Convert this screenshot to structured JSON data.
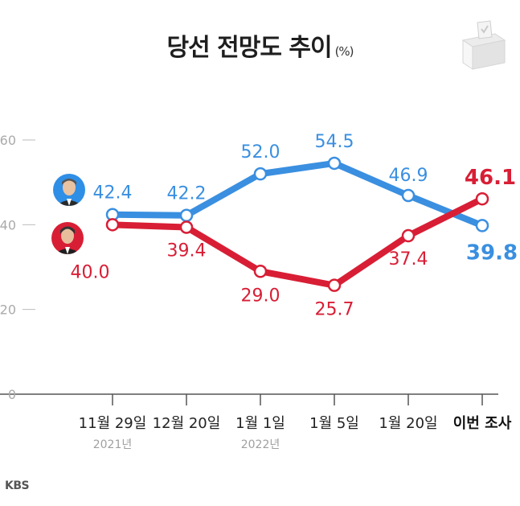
{
  "header": {
    "title": "당선 전망도 추이",
    "unit": "(%)"
  },
  "footer": {
    "logo_text": "KBS"
  },
  "colors": {
    "series1": "#3a8fe0",
    "series2": "#d81e35",
    "axis": "#555555",
    "grid": "#bbbbbb",
    "tick": "#aaaaaa"
  },
  "icons": {
    "candidate1": "man-photo-blue-icon",
    "candidate2": "man-photo-red-icon",
    "ballot": "ballot-box-icon"
  },
  "chart_data": {
    "type": "line",
    "title": "당선 전망도 추이",
    "xlabel": "",
    "ylabel": "",
    "ylim": [
      0,
      60
    ],
    "yticks": [
      0,
      20,
      40,
      60
    ],
    "categories": [
      "11월 29일",
      "12월 20일",
      "1월 1일",
      "1월 5일",
      "1월 20일",
      "이번 조사"
    ],
    "category_years": [
      "2021년",
      "",
      "2022년",
      "",
      "",
      ""
    ],
    "series": [
      {
        "values": [
          42.4,
          42.2,
          52.0,
          54.5,
          46.9,
          39.8
        ]
      },
      {
        "values": [
          40.0,
          39.4,
          29.0,
          25.7,
          37.4,
          46.1
        ]
      }
    ],
    "grid": false,
    "legend": "none"
  }
}
